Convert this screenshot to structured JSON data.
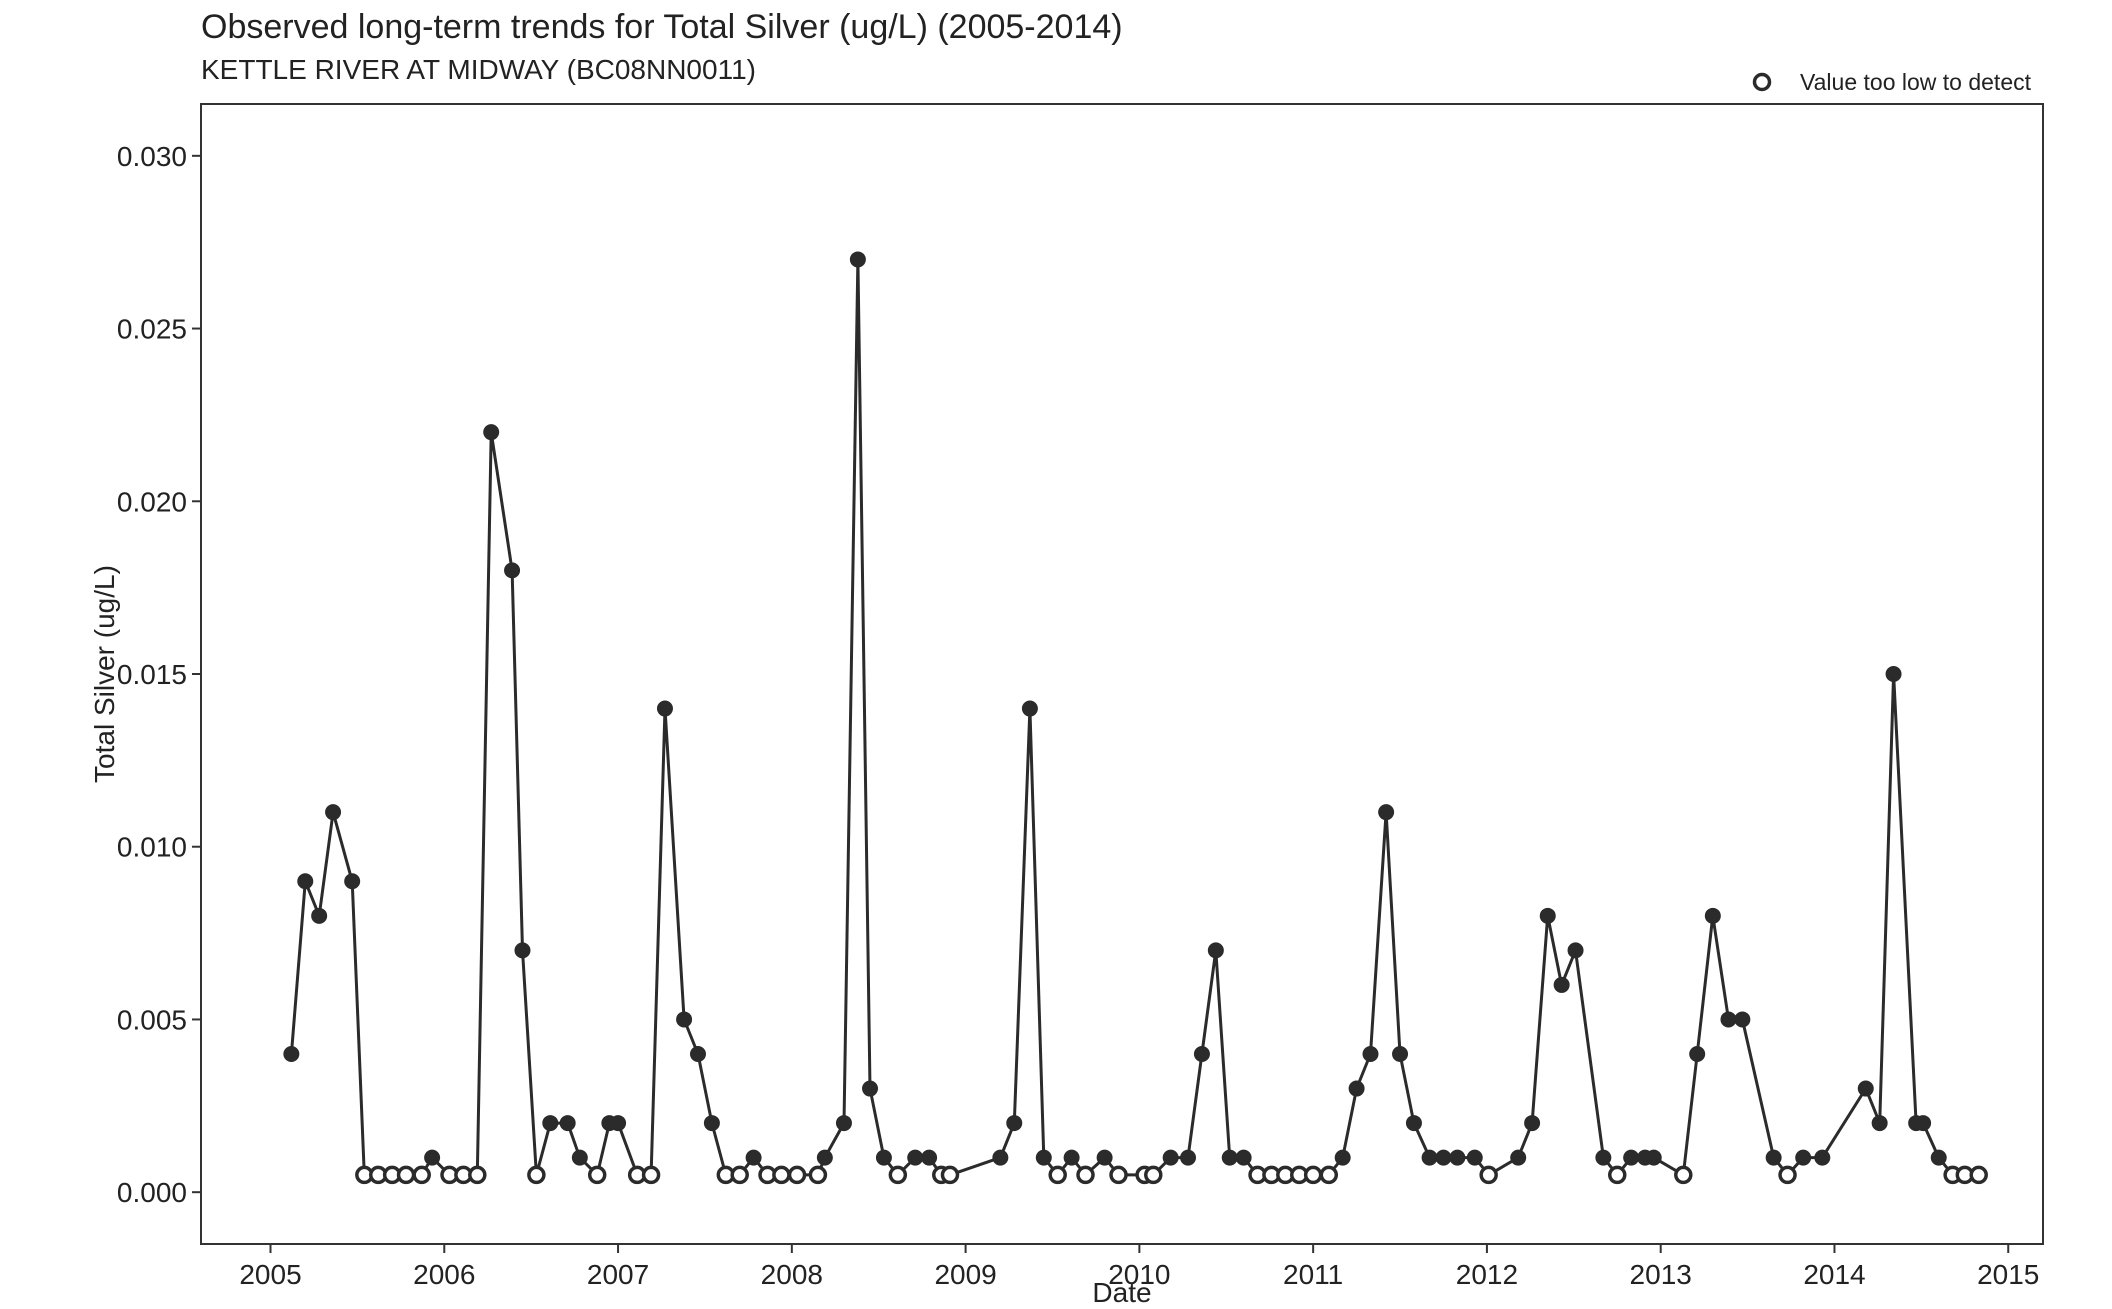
{
  "chart_data": {
    "type": "line",
    "title": "Observed long-term trends for Total Silver (ug/L) (2005-2014)",
    "subtitle": "KETTLE RIVER AT MIDWAY (BC08NN0011)",
    "xlabel": "Date",
    "ylabel": "Total Silver (ug/L)",
    "xlim": [
      2004.6,
      2015.2
    ],
    "ylim": [
      -0.0015,
      0.0315
    ],
    "x_ticks": [
      2005,
      2006,
      2007,
      2008,
      2009,
      2010,
      2011,
      2012,
      2013,
      2014,
      2015
    ],
    "x_tick_labels": [
      "2005",
      "2006",
      "2007",
      "2008",
      "2009",
      "2010",
      "2011",
      "2012",
      "2013",
      "2014",
      "2015"
    ],
    "y_ticks": [
      0,
      0.005,
      0.01,
      0.015,
      0.02,
      0.025,
      0.03
    ],
    "y_tick_labels": [
      "0.000",
      "0.005",
      "0.010",
      "0.015",
      "0.020",
      "0.025",
      "0.030"
    ],
    "grid": false,
    "legend_position": "top-right",
    "legend": [
      {
        "label": "Value too low to detect",
        "marker": "open-circle"
      }
    ],
    "colors": {
      "line": "#2b2b2b",
      "marker": "#2b2b2b"
    },
    "series": [
      {
        "points": [
          {
            "x": 2005.12,
            "y": 0.004,
            "detected": true
          },
          {
            "x": 2005.2,
            "y": 0.009,
            "detected": true
          },
          {
            "x": 2005.28,
            "y": 0.008,
            "detected": true
          },
          {
            "x": 2005.36,
            "y": 0.011,
            "detected": true
          },
          {
            "x": 2005.47,
            "y": 0.009,
            "detected": true
          },
          {
            "x": 2005.54,
            "y": 0.0005,
            "detected": false
          },
          {
            "x": 2005.62,
            "y": 0.0005,
            "detected": false
          },
          {
            "x": 2005.7,
            "y": 0.0005,
            "detected": false
          },
          {
            "x": 2005.78,
            "y": 0.0005,
            "detected": false
          },
          {
            "x": 2005.87,
            "y": 0.0005,
            "detected": false
          },
          {
            "x": 2005.93,
            "y": 0.001,
            "detected": true
          },
          {
            "x": 2006.03,
            "y": 0.0005,
            "detected": false
          },
          {
            "x": 2006.11,
            "y": 0.0005,
            "detected": false
          },
          {
            "x": 2006.19,
            "y": 0.0005,
            "detected": false
          },
          {
            "x": 2006.27,
            "y": 0.022,
            "detected": true
          },
          {
            "x": 2006.39,
            "y": 0.018,
            "detected": true
          },
          {
            "x": 2006.45,
            "y": 0.007,
            "detected": true
          },
          {
            "x": 2006.53,
            "y": 0.0005,
            "detected": false
          },
          {
            "x": 2006.61,
            "y": 0.002,
            "detected": true
          },
          {
            "x": 2006.71,
            "y": 0.002,
            "detected": true
          },
          {
            "x": 2006.78,
            "y": 0.001,
            "detected": true
          },
          {
            "x": 2006.88,
            "y": 0.0005,
            "detected": false
          },
          {
            "x": 2006.95,
            "y": 0.002,
            "detected": true
          },
          {
            "x": 2007.0,
            "y": 0.002,
            "detected": true
          },
          {
            "x": 2007.11,
            "y": 0.0005,
            "detected": false
          },
          {
            "x": 2007.19,
            "y": 0.0005,
            "detected": false
          },
          {
            "x": 2007.27,
            "y": 0.014,
            "detected": true
          },
          {
            "x": 2007.38,
            "y": 0.005,
            "detected": true
          },
          {
            "x": 2007.46,
            "y": 0.004,
            "detected": true
          },
          {
            "x": 2007.54,
            "y": 0.002,
            "detected": true
          },
          {
            "x": 2007.62,
            "y": 0.0005,
            "detected": false
          },
          {
            "x": 2007.7,
            "y": 0.0005,
            "detected": false
          },
          {
            "x": 2007.78,
            "y": 0.001,
            "detected": true
          },
          {
            "x": 2007.86,
            "y": 0.0005,
            "detected": false
          },
          {
            "x": 2007.94,
            "y": 0.0005,
            "detected": false
          },
          {
            "x": 2008.03,
            "y": 0.0005,
            "detected": false
          },
          {
            "x": 2008.15,
            "y": 0.0005,
            "detected": false
          },
          {
            "x": 2008.19,
            "y": 0.001,
            "detected": true
          },
          {
            "x": 2008.3,
            "y": 0.002,
            "detected": true
          },
          {
            "x": 2008.38,
            "y": 0.027,
            "detected": true
          },
          {
            "x": 2008.45,
            "y": 0.003,
            "detected": true
          },
          {
            "x": 2008.53,
            "y": 0.001,
            "detected": true
          },
          {
            "x": 2008.61,
            "y": 0.0005,
            "detected": false
          },
          {
            "x": 2008.71,
            "y": 0.001,
            "detected": true
          },
          {
            "x": 2008.79,
            "y": 0.001,
            "detected": true
          },
          {
            "x": 2008.86,
            "y": 0.0005,
            "detected": false
          },
          {
            "x": 2008.91,
            "y": 0.0005,
            "detected": false
          },
          {
            "x": 2009.2,
            "y": 0.001,
            "detected": true
          },
          {
            "x": 2009.28,
            "y": 0.002,
            "detected": true
          },
          {
            "x": 2009.37,
            "y": 0.014,
            "detected": true
          },
          {
            "x": 2009.45,
            "y": 0.001,
            "detected": true
          },
          {
            "x": 2009.53,
            "y": 0.0005,
            "detected": false
          },
          {
            "x": 2009.61,
            "y": 0.001,
            "detected": true
          },
          {
            "x": 2009.69,
            "y": 0.0005,
            "detected": false
          },
          {
            "x": 2009.8,
            "y": 0.001,
            "detected": true
          },
          {
            "x": 2009.88,
            "y": 0.0005,
            "detected": false
          },
          {
            "x": 2010.03,
            "y": 0.0005,
            "detected": false
          },
          {
            "x": 2010.08,
            "y": 0.0005,
            "detected": false
          },
          {
            "x": 2010.18,
            "y": 0.001,
            "detected": true
          },
          {
            "x": 2010.28,
            "y": 0.001,
            "detected": true
          },
          {
            "x": 2010.36,
            "y": 0.004,
            "detected": true
          },
          {
            "x": 2010.44,
            "y": 0.007,
            "detected": true
          },
          {
            "x": 2010.52,
            "y": 0.001,
            "detected": true
          },
          {
            "x": 2010.6,
            "y": 0.001,
            "detected": true
          },
          {
            "x": 2010.68,
            "y": 0.0005,
            "detected": false
          },
          {
            "x": 2010.76,
            "y": 0.0005,
            "detected": false
          },
          {
            "x": 2010.84,
            "y": 0.0005,
            "detected": false
          },
          {
            "x": 2010.92,
            "y": 0.0005,
            "detected": false
          },
          {
            "x": 2011.0,
            "y": 0.0005,
            "detected": false
          },
          {
            "x": 2011.09,
            "y": 0.0005,
            "detected": false
          },
          {
            "x": 2011.17,
            "y": 0.001,
            "detected": true
          },
          {
            "x": 2011.25,
            "y": 0.003,
            "detected": true
          },
          {
            "x": 2011.33,
            "y": 0.004,
            "detected": true
          },
          {
            "x": 2011.42,
            "y": 0.011,
            "detected": true
          },
          {
            "x": 2011.5,
            "y": 0.004,
            "detected": true
          },
          {
            "x": 2011.58,
            "y": 0.002,
            "detected": true
          },
          {
            "x": 2011.67,
            "y": 0.001,
            "detected": true
          },
          {
            "x": 2011.75,
            "y": 0.001,
            "detected": true
          },
          {
            "x": 2011.83,
            "y": 0.001,
            "detected": true
          },
          {
            "x": 2011.93,
            "y": 0.001,
            "detected": true
          },
          {
            "x": 2012.01,
            "y": 0.0005,
            "detected": false
          },
          {
            "x": 2012.18,
            "y": 0.001,
            "detected": true
          },
          {
            "x": 2012.26,
            "y": 0.002,
            "detected": true
          },
          {
            "x": 2012.35,
            "y": 0.008,
            "detected": true
          },
          {
            "x": 2012.43,
            "y": 0.006,
            "detected": true
          },
          {
            "x": 2012.51,
            "y": 0.007,
            "detected": true
          },
          {
            "x": 2012.67,
            "y": 0.001,
            "detected": true
          },
          {
            "x": 2012.75,
            "y": 0.0005,
            "detected": false
          },
          {
            "x": 2012.83,
            "y": 0.001,
            "detected": true
          },
          {
            "x": 2012.91,
            "y": 0.001,
            "detected": true
          },
          {
            "x": 2012.96,
            "y": 0.001,
            "detected": true
          },
          {
            "x": 2013.13,
            "y": 0.0005,
            "detected": false
          },
          {
            "x": 2013.21,
            "y": 0.004,
            "detected": true
          },
          {
            "x": 2013.3,
            "y": 0.008,
            "detected": true
          },
          {
            "x": 2013.39,
            "y": 0.005,
            "detected": true
          },
          {
            "x": 2013.47,
            "y": 0.005,
            "detected": true
          },
          {
            "x": 2013.65,
            "y": 0.001,
            "detected": true
          },
          {
            "x": 2013.73,
            "y": 0.0005,
            "detected": false
          },
          {
            "x": 2013.82,
            "y": 0.001,
            "detected": true
          },
          {
            "x": 2013.93,
            "y": 0.001,
            "detected": true
          },
          {
            "x": 2014.18,
            "y": 0.003,
            "detected": true
          },
          {
            "x": 2014.26,
            "y": 0.002,
            "detected": true
          },
          {
            "x": 2014.34,
            "y": 0.015,
            "detected": true
          },
          {
            "x": 2014.47,
            "y": 0.002,
            "detected": true
          },
          {
            "x": 2014.51,
            "y": 0.002,
            "detected": true
          },
          {
            "x": 2014.6,
            "y": 0.001,
            "detected": true
          },
          {
            "x": 2014.68,
            "y": 0.0005,
            "detected": false
          },
          {
            "x": 2014.75,
            "y": 0.0005,
            "detected": false
          },
          {
            "x": 2014.83,
            "y": 0.0005,
            "detected": false
          }
        ]
      }
    ]
  }
}
